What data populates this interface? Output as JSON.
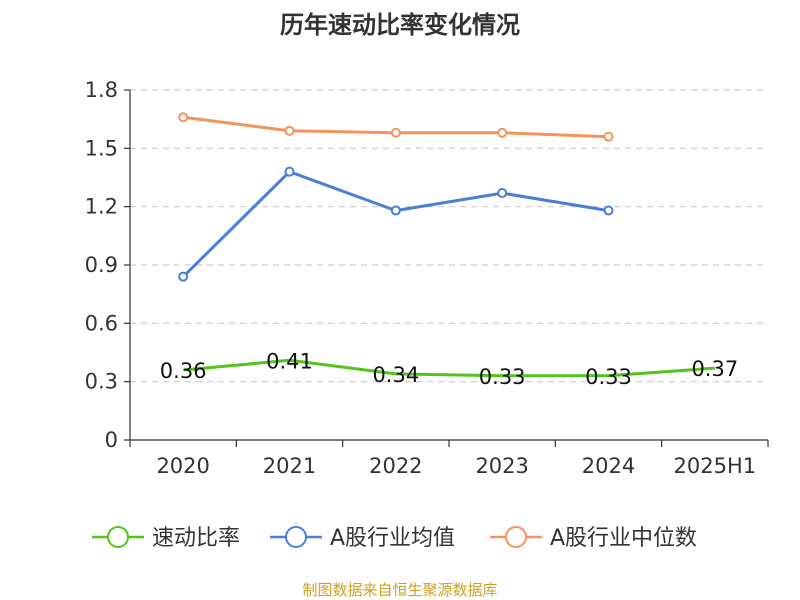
{
  "chart_data": {
    "type": "line",
    "title": "历年速动比率变化情况",
    "categories": [
      "2020",
      "2021",
      "2022",
      "2023",
      "2024",
      "2025H1"
    ],
    "ylim": [
      0,
      1.8
    ],
    "yticks": [
      "0",
      "0.3",
      "0.6",
      "0.9",
      "1.2",
      "1.5",
      "1.8"
    ],
    "grid": true,
    "legend_position": "bottom",
    "series": [
      {
        "name": "速动比率",
        "color": "#52c41a",
        "values": [
          0.36,
          0.41,
          0.34,
          0.33,
          0.33,
          0.37
        ],
        "labels": [
          "0.36",
          "0.41",
          "0.34",
          "0.33",
          "0.33",
          "0.37"
        ],
        "show_labels": true,
        "show_markers": false
      },
      {
        "name": "A股行业均值",
        "color": "#4a7fd9",
        "values": [
          0.84,
          1.38,
          1.18,
          1.27,
          1.18,
          null
        ],
        "show_labels": false,
        "show_markers": true
      },
      {
        "name": "A股行业中位数",
        "color": "#f5925e",
        "values": [
          1.66,
          1.59,
          1.58,
          1.58,
          1.56,
          null
        ],
        "show_labels": false,
        "show_markers": true
      }
    ]
  },
  "source": "制图数据来自恒生聚源数据库"
}
